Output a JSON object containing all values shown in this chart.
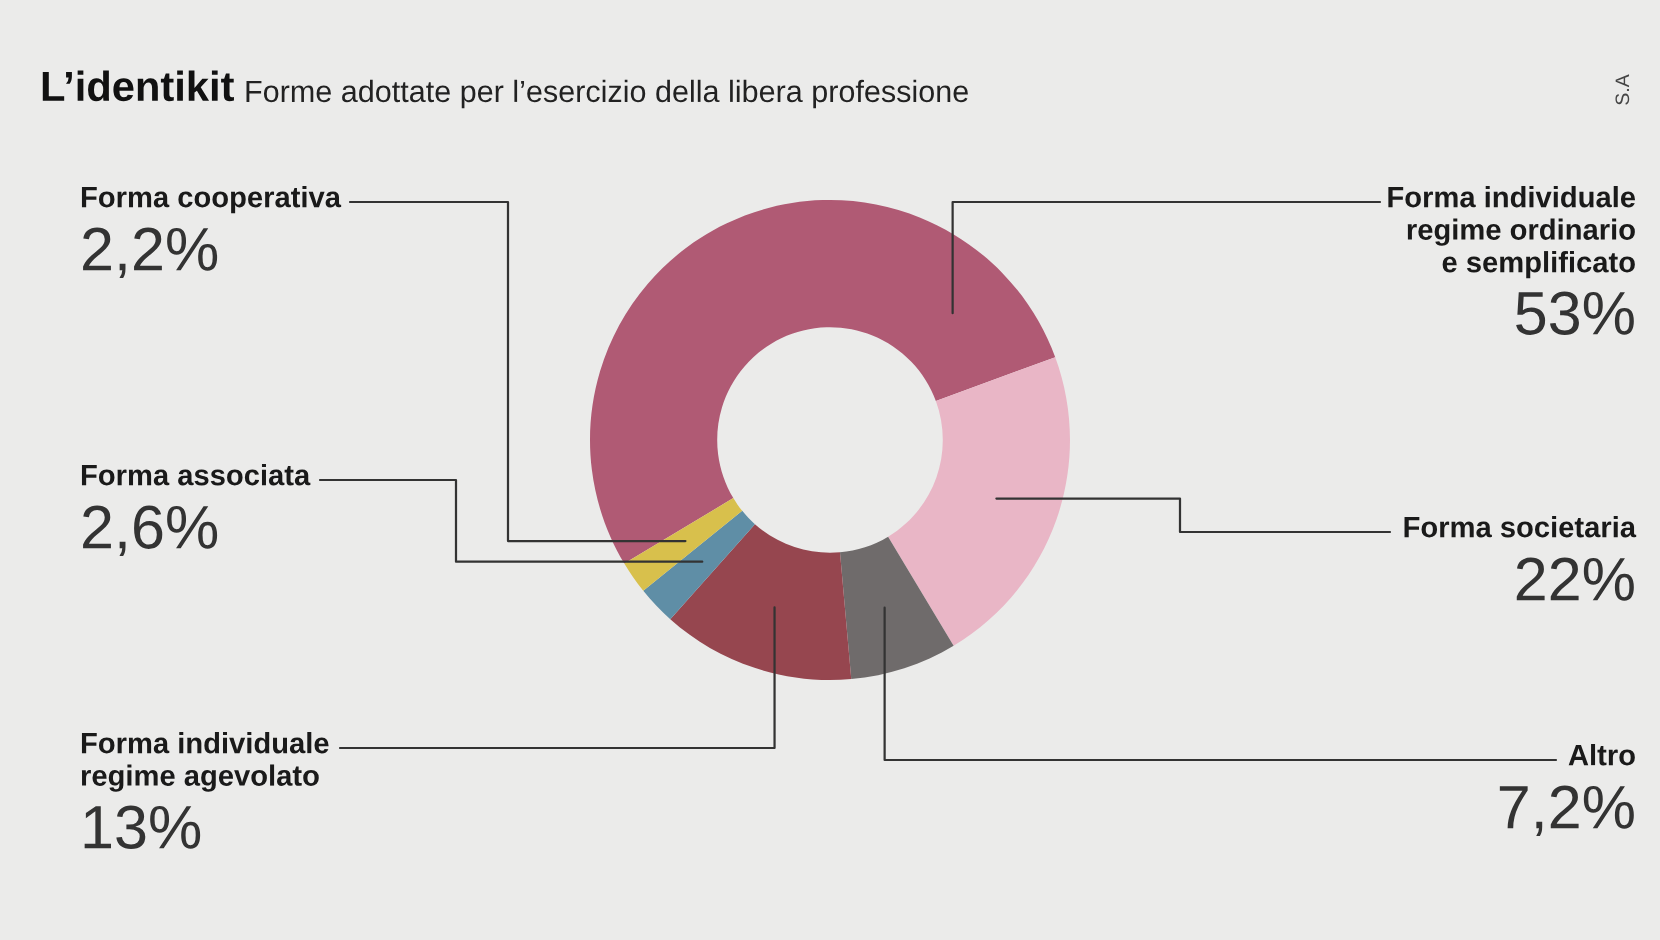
{
  "chart_data": {
    "type": "donut",
    "title": "L’identikit",
    "subtitle": "Forme adottate per l’esercizio della libera professione",
    "categories": [
      "Forma individuale\nregime ordinario\ne semplificato",
      "Forma societaria",
      "Altro",
      "Forma individuale\nregime agevolato",
      "Forma associata",
      "Forma cooperativa"
    ],
    "values": [
      53,
      22,
      7.2,
      13,
      2.6,
      2.2
    ],
    "value_labels": [
      "53%",
      "22%",
      "7,2%",
      "13%",
      "2,6%",
      "2,2%"
    ],
    "colors": [
      "#b05a74",
      "#e9b6c6",
      "#6f6b6b",
      "#96464f",
      "#5f8ea6",
      "#d8c04c"
    ],
    "annotations": [
      "S.A"
    ],
    "legend": false
  }
}
